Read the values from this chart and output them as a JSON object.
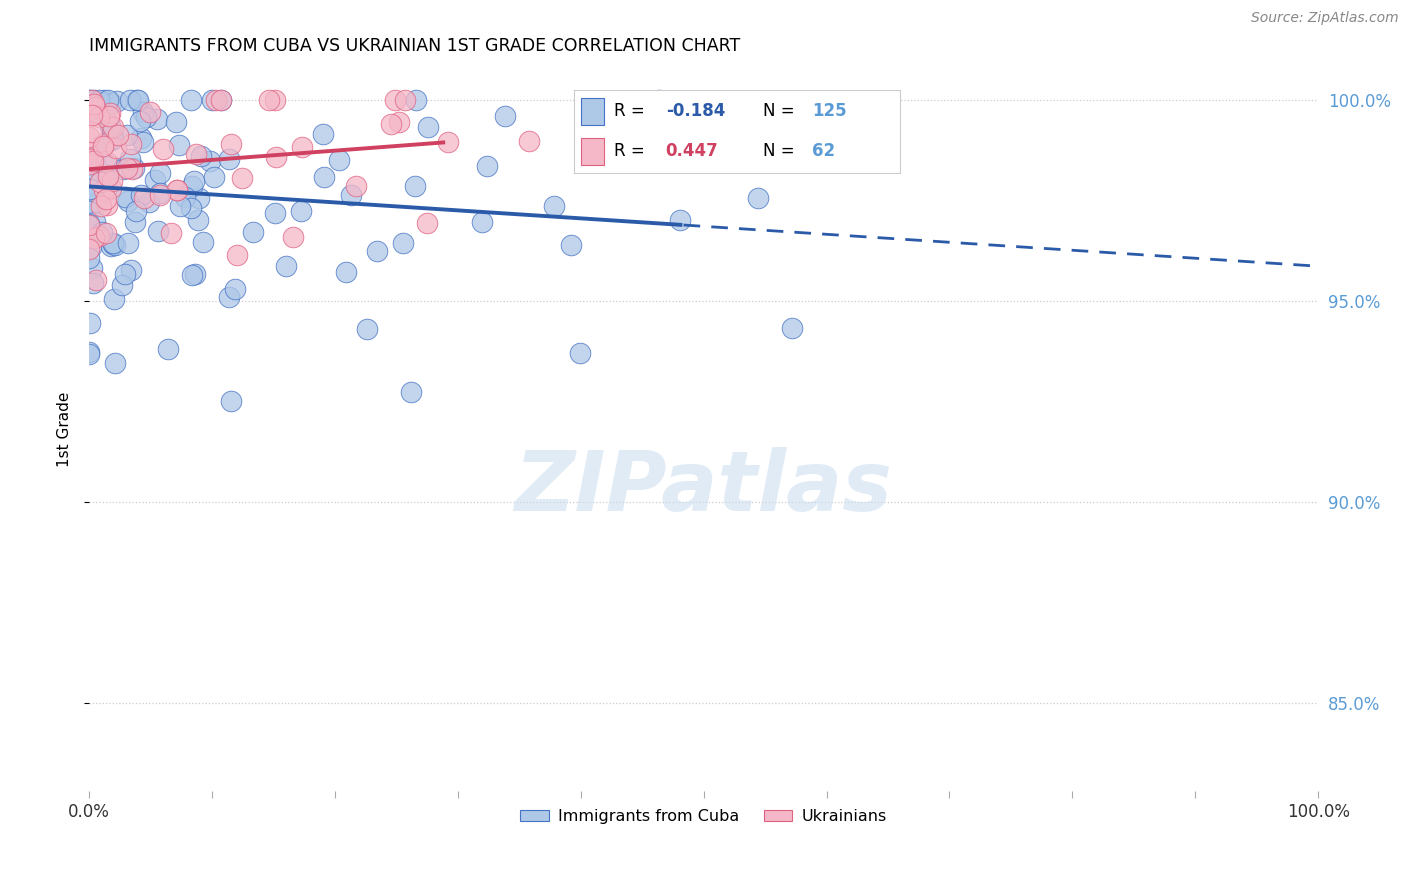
{
  "title": "IMMIGRANTS FROM CUBA VS UKRAINIAN 1ST GRADE CORRELATION CHART",
  "source": "Source: ZipAtlas.com",
  "ylabel": "1st Grade",
  "x_min": 0.0,
  "x_max": 1.0,
  "y_min": 0.828,
  "y_max": 1.008,
  "y_ticks": [
    0.85,
    0.9,
    0.95,
    1.0
  ],
  "y_tick_labels": [
    "85.0%",
    "90.0%",
    "95.0%",
    "100.0%"
  ],
  "right_axis_color": "#5b9bd5",
  "cuba_color": "#aec8e8",
  "ukraine_color": "#f4b8c8",
  "cuba_edge_color": "#4472c4",
  "ukraine_edge_color": "#e06080",
  "cuba_line_color": "#2b5ba8",
  "ukraine_line_color": "#d04060",
  "cuba_R": -0.184,
  "cuba_N": 125,
  "ukraine_R": 0.447,
  "ukraine_N": 62,
  "legend_cuba": "Immigrants from Cuba",
  "legend_ukraine": "Ukrainians",
  "watermark": "ZIPatlas",
  "watermark_color": "#c8dcf0"
}
